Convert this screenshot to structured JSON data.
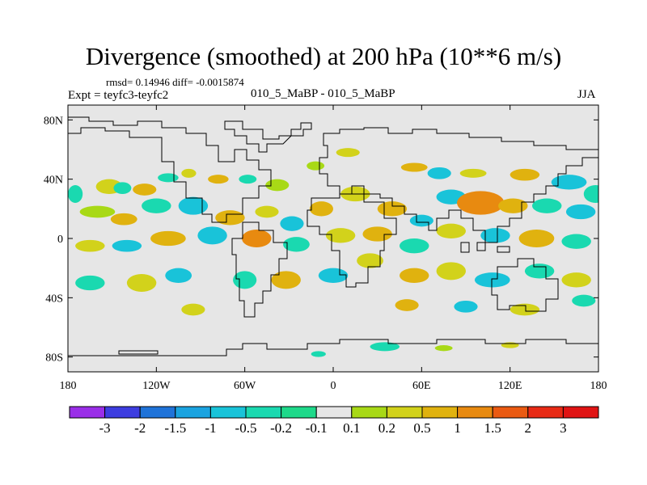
{
  "header": {
    "title": "Divergence (smoothed) at 200 hPa (10**6 m/s)",
    "stats": "rmsd= 0.14946 diff= -0.0015874",
    "expt": "Expt = teyfc3-teyfc2",
    "center_label": "010_5_MaBP - 010_5_MaBP",
    "season": "JJA"
  },
  "chart_data": {
    "type": "heatmap",
    "title": "Divergence (smoothed) at 200 hPa (10**6 m/s)",
    "projection": "cylindrical equidistant",
    "xlim": [
      -180,
      180
    ],
    "ylim": [
      -90,
      90
    ],
    "x_ticks": [
      -180,
      -120,
      -60,
      0,
      60,
      120,
      180
    ],
    "x_tick_labels": [
      "180",
      "120W",
      "60W",
      "0",
      "60E",
      "120E",
      "180"
    ],
    "y_ticks": [
      80,
      40,
      0,
      -40,
      -80
    ],
    "y_tick_labels": [
      "80N",
      "40N",
      "0",
      "40S",
      "80S"
    ],
    "background_color": "#e6e6e6",
    "colorbar": {
      "boundaries": [
        "-3",
        "-2",
        "-1.5",
        "-1",
        "-0.5",
        "-0.2",
        "-0.1",
        "0.1",
        "0.2",
        "0.5",
        "1",
        "1.5",
        "2",
        "3"
      ],
      "colors": [
        "#9a2ee8",
        "#3d3de0",
        "#1f73d9",
        "#1aa3e0",
        "#19c3d9",
        "#1ad9b0",
        "#1ed98a",
        "#e6e6e6",
        "#a8d916",
        "#d2d21b",
        "#e0b20f",
        "#e88a10",
        "#ea5a12",
        "#e82a15",
        "#e01414"
      ]
    },
    "features": [
      {
        "lon": -152,
        "lat": 35,
        "rx": 9,
        "ry": 5,
        "cls": 9
      },
      {
        "lon": -143,
        "lat": 34,
        "rx": 6,
        "ry": 4,
        "cls": 5
      },
      {
        "lon": -128,
        "lat": 33,
        "rx": 8,
        "ry": 4,
        "cls": 10
      },
      {
        "lon": -112,
        "lat": 41,
        "rx": 7,
        "ry": 3,
        "cls": 5
      },
      {
        "lon": -98,
        "lat": 44,
        "rx": 5,
        "ry": 3,
        "cls": 9
      },
      {
        "lon": -78,
        "lat": 40,
        "rx": 7,
        "ry": 3,
        "cls": 10
      },
      {
        "lon": -58,
        "lat": 40,
        "rx": 6,
        "ry": 3,
        "cls": 5
      },
      {
        "lon": -38,
        "lat": 36,
        "rx": 8,
        "ry": 4,
        "cls": 8
      },
      {
        "lon": -12,
        "lat": 49,
        "rx": 6,
        "ry": 3,
        "cls": 8
      },
      {
        "lon": 10,
        "lat": 58,
        "rx": 8,
        "ry": 3,
        "cls": 9
      },
      {
        "lon": 55,
        "lat": 48,
        "rx": 9,
        "ry": 3,
        "cls": 10
      },
      {
        "lon": 72,
        "lat": 44,
        "rx": 8,
        "ry": 4,
        "cls": 4
      },
      {
        "lon": 95,
        "lat": 44,
        "rx": 9,
        "ry": 3,
        "cls": 9
      },
      {
        "lon": 130,
        "lat": 43,
        "rx": 10,
        "ry": 4,
        "cls": 10
      },
      {
        "lon": 160,
        "lat": 38,
        "rx": 12,
        "ry": 5,
        "cls": 4
      },
      {
        "lon": 178,
        "lat": 30,
        "rx": 8,
        "ry": 6,
        "cls": 5
      },
      {
        "lon": -175,
        "lat": 30,
        "rx": 5,
        "ry": 6,
        "cls": 5
      },
      {
        "lon": -160,
        "lat": 18,
        "rx": 12,
        "ry": 4,
        "cls": 8
      },
      {
        "lon": -142,
        "lat": 13,
        "rx": 9,
        "ry": 4,
        "cls": 10
      },
      {
        "lon": -120,
        "lat": 22,
        "rx": 10,
        "ry": 5,
        "cls": 5
      },
      {
        "lon": -95,
        "lat": 22,
        "rx": 10,
        "ry": 6,
        "cls": 4
      },
      {
        "lon": -70,
        "lat": 14,
        "rx": 10,
        "ry": 5,
        "cls": 10
      },
      {
        "lon": -45,
        "lat": 18,
        "rx": 8,
        "ry": 4,
        "cls": 9
      },
      {
        "lon": -28,
        "lat": 10,
        "rx": 8,
        "ry": 5,
        "cls": 4
      },
      {
        "lon": -8,
        "lat": 20,
        "rx": 8,
        "ry": 5,
        "cls": 10
      },
      {
        "lon": 15,
        "lat": 30,
        "rx": 10,
        "ry": 5,
        "cls": 9
      },
      {
        "lon": 40,
        "lat": 20,
        "rx": 10,
        "ry": 5,
        "cls": 10
      },
      {
        "lon": 60,
        "lat": 12,
        "rx": 8,
        "ry": 4,
        "cls": 4
      },
      {
        "lon": 80,
        "lat": 28,
        "rx": 10,
        "ry": 5,
        "cls": 4
      },
      {
        "lon": 100,
        "lat": 24,
        "rx": 16,
        "ry": 8,
        "cls": 11
      },
      {
        "lon": 122,
        "lat": 22,
        "rx": 10,
        "ry": 5,
        "cls": 10
      },
      {
        "lon": 145,
        "lat": 22,
        "rx": 10,
        "ry": 5,
        "cls": 5
      },
      {
        "lon": 168,
        "lat": 18,
        "rx": 10,
        "ry": 5,
        "cls": 4
      },
      {
        "lon": -165,
        "lat": -5,
        "rx": 10,
        "ry": 4,
        "cls": 9
      },
      {
        "lon": -140,
        "lat": -5,
        "rx": 10,
        "ry": 4,
        "cls": 4
      },
      {
        "lon": -112,
        "lat": 0,
        "rx": 12,
        "ry": 5,
        "cls": 10
      },
      {
        "lon": -82,
        "lat": 2,
        "rx": 10,
        "ry": 6,
        "cls": 4
      },
      {
        "lon": -52,
        "lat": 0,
        "rx": 10,
        "ry": 6,
        "cls": 11
      },
      {
        "lon": -25,
        "lat": -4,
        "rx": 9,
        "ry": 5,
        "cls": 5
      },
      {
        "lon": 5,
        "lat": 2,
        "rx": 10,
        "ry": 5,
        "cls": 9
      },
      {
        "lon": 30,
        "lat": 3,
        "rx": 10,
        "ry": 5,
        "cls": 10
      },
      {
        "lon": 55,
        "lat": -5,
        "rx": 10,
        "ry": 5,
        "cls": 5
      },
      {
        "lon": 80,
        "lat": 5,
        "rx": 10,
        "ry": 5,
        "cls": 9
      },
      {
        "lon": 110,
        "lat": 2,
        "rx": 10,
        "ry": 5,
        "cls": 4
      },
      {
        "lon": 138,
        "lat": 0,
        "rx": 12,
        "ry": 6,
        "cls": 10
      },
      {
        "lon": 165,
        "lat": -2,
        "rx": 10,
        "ry": 5,
        "cls": 5
      },
      {
        "lon": -165,
        "lat": -30,
        "rx": 10,
        "ry": 5,
        "cls": 5
      },
      {
        "lon": -130,
        "lat": -30,
        "rx": 10,
        "ry": 6,
        "cls": 9
      },
      {
        "lon": -105,
        "lat": -25,
        "rx": 9,
        "ry": 5,
        "cls": 4
      },
      {
        "lon": -60,
        "lat": -28,
        "rx": 8,
        "ry": 6,
        "cls": 5
      },
      {
        "lon": -32,
        "lat": -28,
        "rx": 10,
        "ry": 6,
        "cls": 10
      },
      {
        "lon": 0,
        "lat": -25,
        "rx": 10,
        "ry": 5,
        "cls": 4
      },
      {
        "lon": 25,
        "lat": -15,
        "rx": 9,
        "ry": 5,
        "cls": 9
      },
      {
        "lon": 55,
        "lat": -25,
        "rx": 10,
        "ry": 5,
        "cls": 10
      },
      {
        "lon": 80,
        "lat": -22,
        "rx": 10,
        "ry": 6,
        "cls": 9
      },
      {
        "lon": 108,
        "lat": -28,
        "rx": 12,
        "ry": 5,
        "cls": 4
      },
      {
        "lon": 140,
        "lat": -22,
        "rx": 10,
        "ry": 5,
        "cls": 5
      },
      {
        "lon": 165,
        "lat": -28,
        "rx": 10,
        "ry": 5,
        "cls": 9
      },
      {
        "lon": -95,
        "lat": -48,
        "rx": 8,
        "ry": 4,
        "cls": 9
      },
      {
        "lon": 50,
        "lat": -45,
        "rx": 8,
        "ry": 4,
        "cls": 10
      },
      {
        "lon": 90,
        "lat": -46,
        "rx": 8,
        "ry": 4,
        "cls": 4
      },
      {
        "lon": 130,
        "lat": -48,
        "rx": 10,
        "ry": 4,
        "cls": 9
      },
      {
        "lon": 170,
        "lat": -42,
        "rx": 8,
        "ry": 4,
        "cls": 5
      },
      {
        "lon": 35,
        "lat": -73,
        "rx": 10,
        "ry": 3,
        "cls": 5
      },
      {
        "lon": -10,
        "lat": -78,
        "rx": 5,
        "ry": 2,
        "cls": 5
      },
      {
        "lon": 75,
        "lat": -74,
        "rx": 6,
        "ry": 2,
        "cls": 8
      },
      {
        "lon": 120,
        "lat": -72,
        "rx": 6,
        "ry": 2,
        "cls": 9
      }
    ]
  }
}
